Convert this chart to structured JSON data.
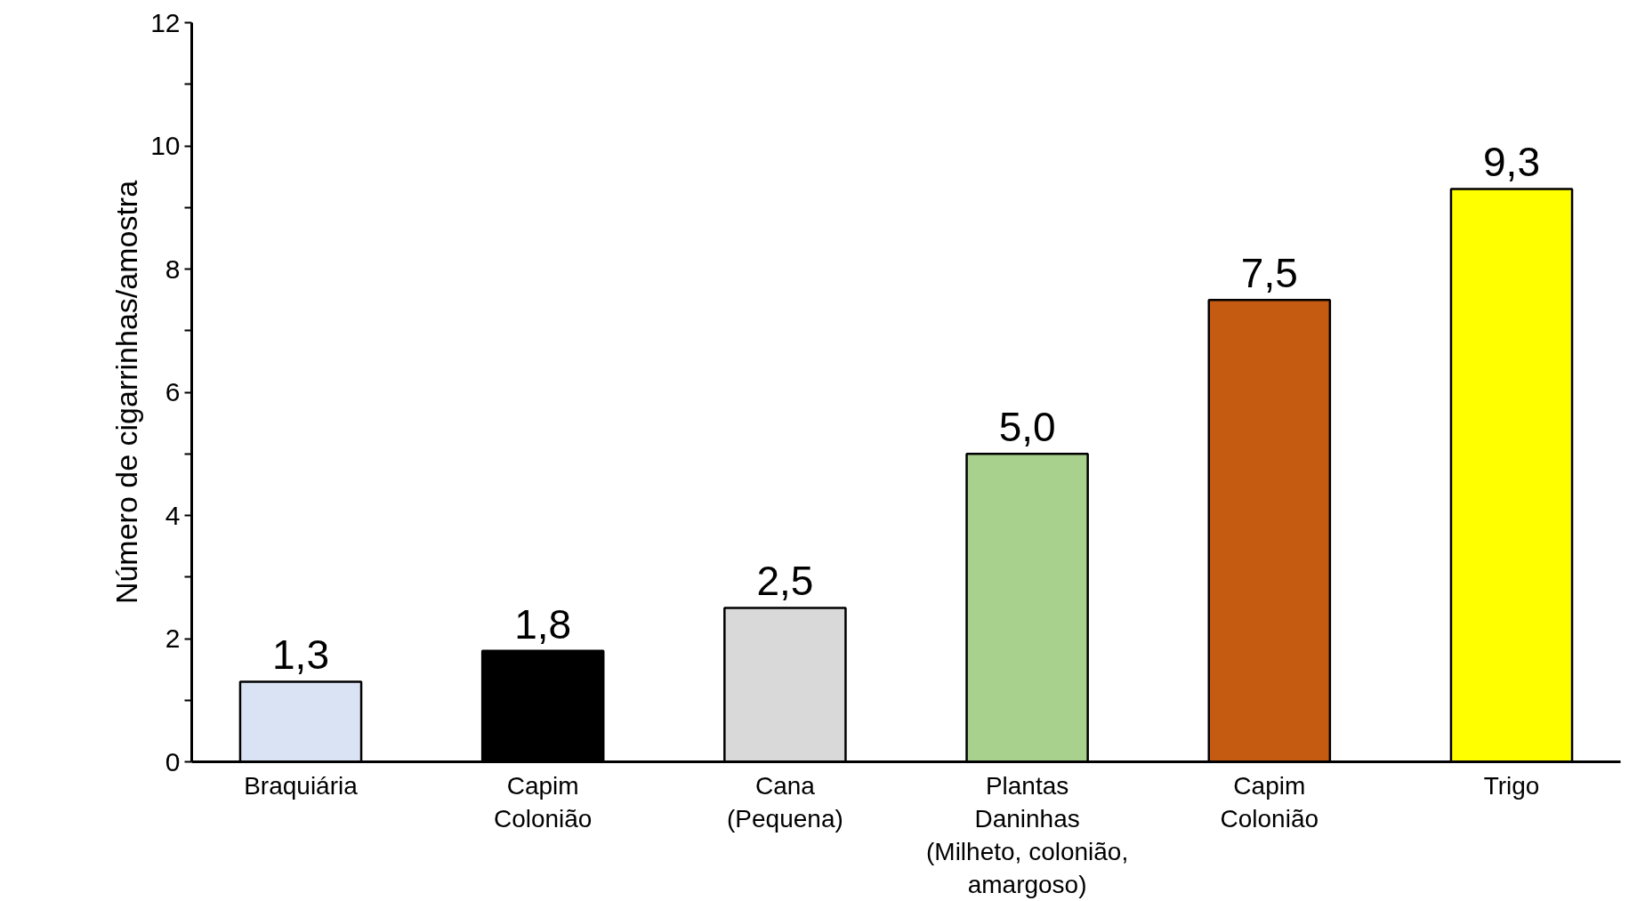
{
  "chart_data": {
    "type": "bar",
    "ylabel": "Número de cigarrinhas/amostra",
    "categories": [
      "Braquiária",
      "Capim\nColonião",
      "Cana\n(Pequena)",
      "Plantas\nDaninhas\n(Milheto, colonião,\namargoso)",
      "Capim\nColonião",
      "Trigo"
    ],
    "values": [
      1.3,
      1.8,
      2.5,
      5.0,
      7.5,
      9.3
    ],
    "colors": [
      "#dae3f3",
      "#000000",
      "#d9d9d9",
      "#a9d18e",
      "#c55a11",
      "#ffff00"
    ],
    "value_labels": [
      "1,3",
      "1,8",
      "2,5",
      "5,0",
      "7,5",
      "9,3"
    ],
    "ylim": [
      0,
      12
    ],
    "yticks": [
      0,
      2,
      4,
      6,
      8,
      10,
      12
    ],
    "grid": false
  }
}
